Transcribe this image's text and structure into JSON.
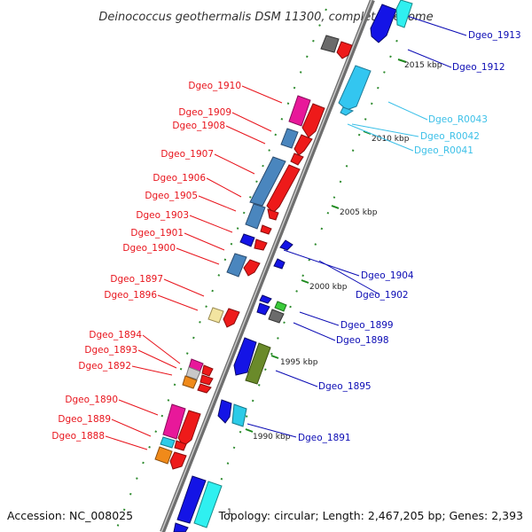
{
  "title": "Deinococcus geothermalis DSM 11300, complete genome",
  "footer": {
    "accession": "Accession: NC_008025",
    "topology": "Topology: circular; Length: 2,467,205 bp; Genes: 2,393",
    "marker": "1"
  },
  "colors": {
    "left_label": "#e8141c",
    "right_label": "#0b0bb4",
    "rna_label": "#3cc0e8",
    "backbone": "#8a8a8a",
    "tick": "#1e8a1e"
  },
  "scale_labels": [
    "2015 kbp",
    "2010 kbp",
    "2005 kbp",
    "2000 kbp",
    "1995 kbp",
    "1990 kbp"
  ],
  "left_labels": [
    "Dgeo_1910",
    "Dgeo_1909",
    "Dgeo_1908",
    "Dgeo_1907",
    "Dgeo_1906",
    "Dgeo_1905",
    "Dgeo_1903",
    "Dgeo_1901",
    "Dgeo_1900",
    "Dgeo_1897",
    "Dgeo_1896",
    "Dgeo_1894",
    "Dgeo_1893",
    "Dgeo_1892",
    "Dgeo_1890",
    "Dgeo_1889",
    "Dgeo_1888"
  ],
  "right_labels": [
    "Dgeo_1913",
    "Dgeo_1912",
    "Dgeo_R0043",
    "Dgeo_R0042",
    "Dgeo_R0041",
    "Dgeo_1904",
    "Dgeo_1902",
    "Dgeo_1899",
    "Dgeo_1898",
    "Dgeo_1895",
    "Dgeo_1891"
  ]
}
